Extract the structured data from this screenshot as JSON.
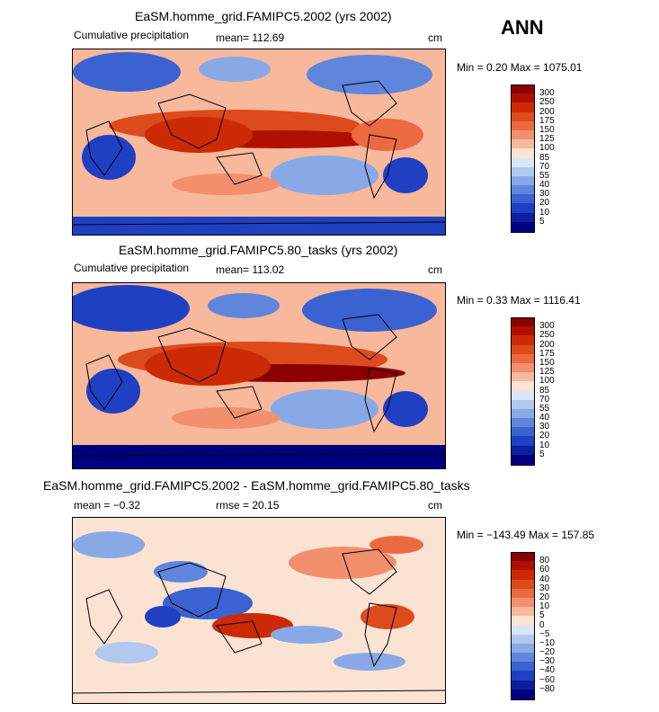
{
  "season": "ANN",
  "panels": [
    {
      "title": "EaSM.homme_grid.FAMIPC5.2002 (yrs 2002)",
      "left_label": "Cumulative precipitation",
      "mean_text": "mean= 112.69",
      "units": "cm",
      "minmax": "Min =    0.20  Max = 1075.01",
      "cbar_ticks": [
        "300",
        "250",
        "200",
        "175",
        "150",
        "125",
        "100",
        "85",
        "70",
        "55",
        "40",
        "30",
        "20",
        "10",
        "5"
      ],
      "cbar_colors": [
        "#8b0000",
        "#b00f00",
        "#cc2a05",
        "#dd4a1c",
        "#ec6a40",
        "#f28f6c",
        "#f7b89c",
        "#fbe3d4",
        "#d8e6f7",
        "#b1c9ee",
        "#89a9e6",
        "#5f86dc",
        "#3a63d1",
        "#1f40c2",
        "#0c1f9f",
        "#000080"
      ]
    },
    {
      "title": "EaSM.homme_grid.FAMIPC5.80_tasks (yrs 2002)",
      "left_label": "Cumulative precipitation",
      "mean_text": "mean= 113.02",
      "units": "cm",
      "minmax": "Min =    0.33  Max = 1116.41",
      "cbar_ticks": [
        "300",
        "250",
        "200",
        "175",
        "150",
        "125",
        "100",
        "85",
        "70",
        "55",
        "40",
        "30",
        "20",
        "10",
        "5"
      ],
      "cbar_colors": [
        "#8b0000",
        "#b00f00",
        "#cc2a05",
        "#dd4a1c",
        "#ec6a40",
        "#f28f6c",
        "#f7b89c",
        "#fbe3d4",
        "#d8e6f7",
        "#b1c9ee",
        "#89a9e6",
        "#5f86dc",
        "#3a63d1",
        "#1f40c2",
        "#0c1f9f",
        "#000080"
      ]
    },
    {
      "title": "EaSM.homme_grid.FAMIPC5.2002 - EaSM.homme_grid.FAMIPC5.80_tasks",
      "left_label": "mean =   −0.32",
      "mean_text": "rmse =   20.15",
      "units": "cm",
      "minmax": "Min = −143.49  Max = 157.85",
      "cbar_ticks": [
        "80",
        "60",
        "40",
        "30",
        "20",
        "10",
        "5",
        "0",
        "−5",
        "−10",
        "−20",
        "−30",
        "−40",
        "−60",
        "−80"
      ],
      "cbar_colors": [
        "#8b0000",
        "#b00f00",
        "#cc2a05",
        "#dd4a1c",
        "#ec6a40",
        "#f28f6c",
        "#f7b89c",
        "#fbe3d4",
        "#d8e6f7",
        "#b1c9ee",
        "#89a9e6",
        "#5f86dc",
        "#3a63d1",
        "#1f40c2",
        "#0c1f9f",
        "#000080"
      ]
    }
  ],
  "chart_data": [
    {
      "type": "heatmap",
      "title": "EaSM.homme_grid.FAMIPC5.2002 (yrs 2002)",
      "variable": "Cumulative precipitation",
      "mean": 112.69,
      "units": "cm",
      "min": 0.2,
      "max": 1075.01,
      "levels": [
        5,
        10,
        20,
        30,
        40,
        55,
        70,
        85,
        100,
        125,
        150,
        175,
        200,
        250,
        300
      ]
    },
    {
      "type": "heatmap",
      "title": "EaSM.homme_grid.FAMIPC5.80_tasks (yrs 2002)",
      "variable": "Cumulative precipitation",
      "mean": 113.02,
      "units": "cm",
      "min": 0.33,
      "max": 1116.41,
      "levels": [
        5,
        10,
        20,
        30,
        40,
        55,
        70,
        85,
        100,
        125,
        150,
        175,
        200,
        250,
        300
      ]
    },
    {
      "type": "heatmap",
      "title": "EaSM.homme_grid.FAMIPC5.2002 - EaSM.homme_grid.FAMIPC5.80_tasks",
      "mean": -0.32,
      "rmse": 20.15,
      "units": "cm",
      "min": -143.49,
      "max": 157.85,
      "levels": [
        -80,
        -60,
        -40,
        -30,
        -20,
        -10,
        -5,
        0,
        5,
        10,
        20,
        30,
        40,
        60,
        80
      ]
    }
  ]
}
